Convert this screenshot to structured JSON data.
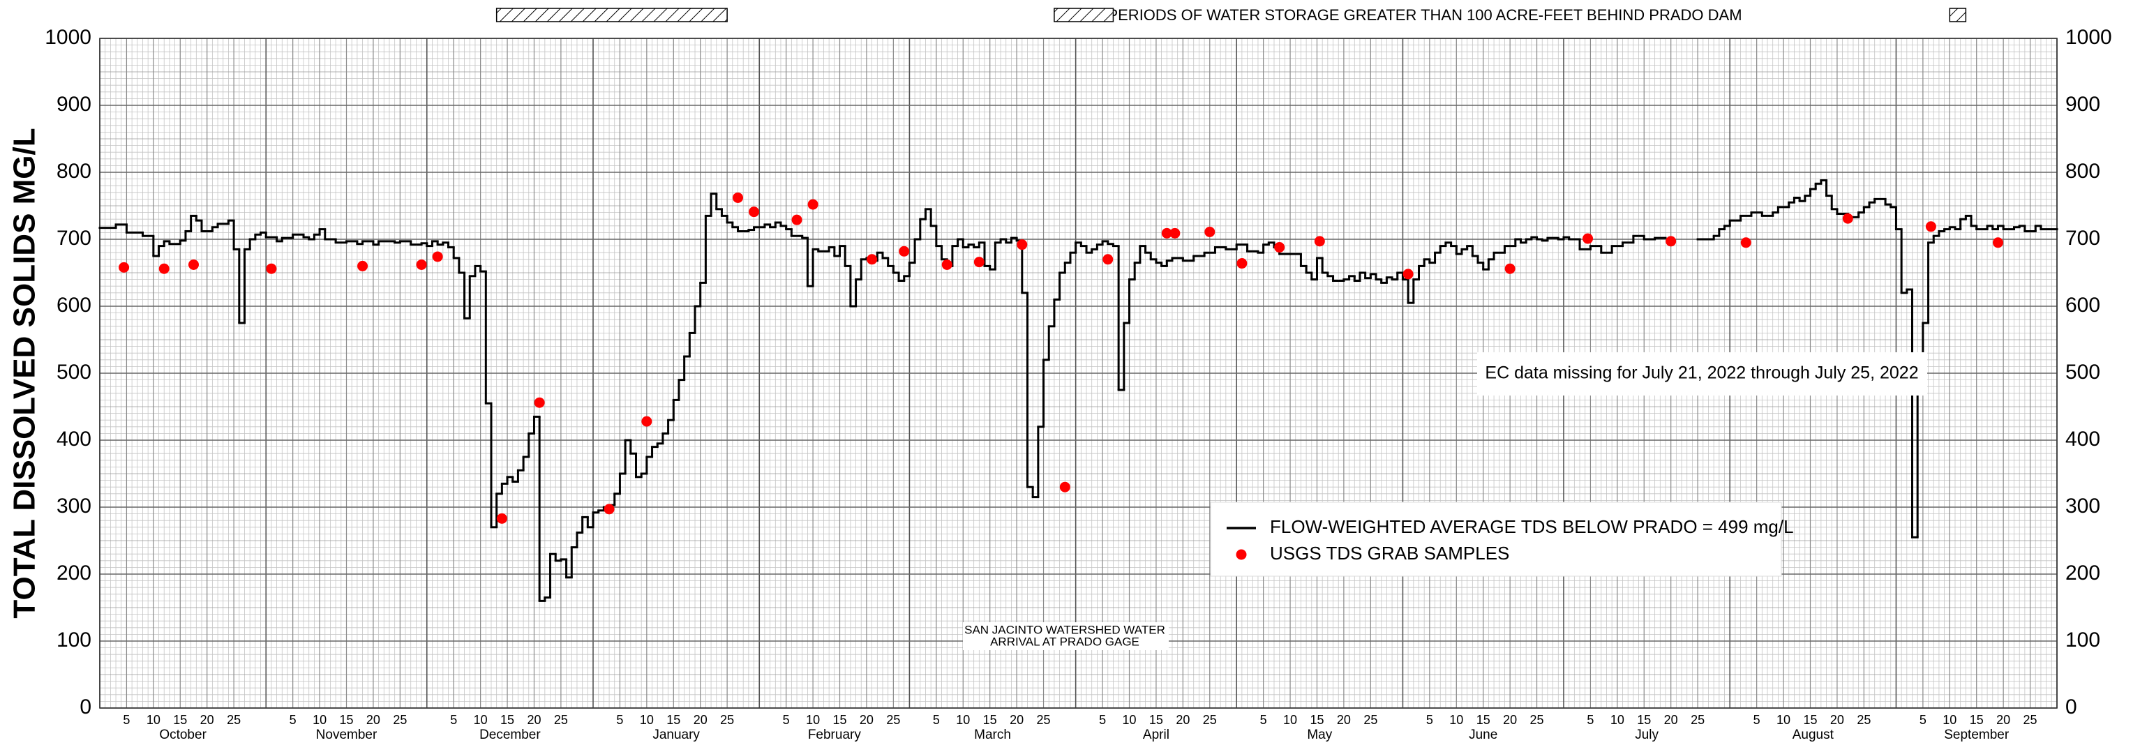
{
  "chart_data": {
    "type": "line",
    "y_label": "TOTAL DISSOLVED SOLIDS MG/L",
    "xlim": [
      0,
      365
    ],
    "ylim": [
      0,
      1000
    ],
    "yticks": [
      0,
      100,
      200,
      300,
      400,
      500,
      600,
      700,
      800,
      900,
      1000
    ],
    "grid": true,
    "xticks": [
      {
        "value": 5,
        "label": "5"
      },
      {
        "value": 10,
        "label": "10"
      },
      {
        "value": 15,
        "label": "15"
      },
      {
        "value": 20,
        "label": "20"
      },
      {
        "value": 25,
        "label": "25"
      },
      {
        "value": 36,
        "label": "5"
      },
      {
        "value": 41,
        "label": "10"
      },
      {
        "value": 46,
        "label": "15"
      },
      {
        "value": 51,
        "label": "20"
      },
      {
        "value": 56,
        "label": "25"
      },
      {
        "value": 66,
        "label": "5"
      },
      {
        "value": 71,
        "label": "10"
      },
      {
        "value": 76,
        "label": "15"
      },
      {
        "value": 81,
        "label": "20"
      },
      {
        "value": 86,
        "label": "25"
      },
      {
        "value": 97,
        "label": "5"
      },
      {
        "value": 102,
        "label": "10"
      },
      {
        "value": 107,
        "label": "15"
      },
      {
        "value": 112,
        "label": "20"
      },
      {
        "value": 117,
        "label": "25"
      },
      {
        "value": 128,
        "label": "5"
      },
      {
        "value": 133,
        "label": "10"
      },
      {
        "value": 138,
        "label": "15"
      },
      {
        "value": 143,
        "label": "20"
      },
      {
        "value": 148,
        "label": "25"
      },
      {
        "value": 156,
        "label": "5"
      },
      {
        "value": 161,
        "label": "10"
      },
      {
        "value": 166,
        "label": "15"
      },
      {
        "value": 171,
        "label": "20"
      },
      {
        "value": 176,
        "label": "25"
      },
      {
        "value": 187,
        "label": "5"
      },
      {
        "value": 192,
        "label": "10"
      },
      {
        "value": 197,
        "label": "15"
      },
      {
        "value": 202,
        "label": "20"
      },
      {
        "value": 207,
        "label": "25"
      },
      {
        "value": 217,
        "label": "5"
      },
      {
        "value": 222,
        "label": "10"
      },
      {
        "value": 227,
        "label": "15"
      },
      {
        "value": 232,
        "label": "20"
      },
      {
        "value": 237,
        "label": "25"
      },
      {
        "value": 248,
        "label": "5"
      },
      {
        "value": 253,
        "label": "10"
      },
      {
        "value": 258,
        "label": "15"
      },
      {
        "value": 263,
        "label": "20"
      },
      {
        "value": 268,
        "label": "25"
      },
      {
        "value": 278,
        "label": "5"
      },
      {
        "value": 283,
        "label": "10"
      },
      {
        "value": 288,
        "label": "15"
      },
      {
        "value": 293,
        "label": "20"
      },
      {
        "value": 298,
        "label": "25"
      },
      {
        "value": 309,
        "label": "5"
      },
      {
        "value": 314,
        "label": "10"
      },
      {
        "value": 319,
        "label": "15"
      },
      {
        "value": 324,
        "label": "20"
      },
      {
        "value": 329,
        "label": "25"
      },
      {
        "value": 340,
        "label": "5"
      },
      {
        "value": 345,
        "label": "10"
      },
      {
        "value": 350,
        "label": "15"
      },
      {
        "value": 355,
        "label": "20"
      },
      {
        "value": 360,
        "label": "25"
      }
    ],
    "month_bounds": [
      0,
      31,
      61,
      92,
      123,
      151,
      182,
      212,
      243,
      273,
      304,
      335,
      365
    ],
    "months": [
      "October",
      "November",
      "December",
      "January",
      "February",
      "March",
      "April",
      "May",
      "June",
      "July",
      "August",
      "September"
    ],
    "series": [
      {
        "name": "FLOW-WEIGHTED AVERAGE TDS BELOW PRADO = 499 mg/L",
        "mode": "step",
        "color": "#000000",
        "x": [
          0,
          3,
          5,
          8,
          10,
          11,
          12,
          13,
          15,
          16,
          17,
          18,
          19,
          21,
          22,
          24,
          25,
          26,
          27,
          28,
          29,
          30,
          31,
          33,
          34,
          36,
          38,
          39,
          40,
          41,
          42,
          44,
          46,
          48,
          49,
          51,
          52,
          55,
          56,
          58,
          60,
          61,
          62,
          63,
          64,
          65,
          66,
          67,
          68,
          69,
          70,
          71,
          72,
          73,
          74,
          75,
          76,
          77,
          78,
          79,
          80,
          81,
          82,
          83,
          84,
          85,
          86,
          87,
          88,
          89,
          90,
          91,
          92,
          93,
          94,
          95,
          96,
          97,
          98,
          99,
          100,
          101,
          102,
          103,
          104,
          105,
          106,
          107,
          108,
          109,
          110,
          111,
          112,
          113,
          114,
          115,
          116,
          117,
          118,
          119,
          121,
          122,
          124,
          125,
          126,
          127,
          128,
          129,
          131,
          132,
          133,
          134,
          136,
          137,
          138,
          139,
          140,
          141,
          142,
          143,
          144,
          145,
          146,
          147,
          148,
          149,
          150,
          151,
          152,
          153,
          154,
          155,
          156,
          157,
          158,
          159,
          160,
          161,
          162,
          163,
          164,
          165,
          166,
          167,
          168,
          169,
          170,
          171,
          172,
          173,
          174,
          175,
          176,
          177,
          178,
          179,
          180,
          181,
          182,
          183,
          184,
          185,
          186,
          187,
          188,
          189,
          190,
          191,
          192,
          193,
          194,
          195,
          196,
          197,
          198,
          199,
          200,
          202,
          204,
          206,
          208,
          210,
          212,
          214,
          216,
          217,
          218,
          219,
          220,
          222,
          224,
          225,
          226,
          227,
          228,
          229,
          230,
          232,
          233,
          234,
          235,
          236,
          237,
          238,
          239,
          240,
          241,
          242,
          243,
          244,
          245,
          246,
          247,
          248,
          249,
          250,
          251,
          252,
          253,
          254,
          255,
          256,
          257,
          258,
          259,
          260,
          262,
          264,
          265,
          266,
          267,
          268,
          269,
          270,
          272,
          273,
          274,
          276,
          278,
          280,
          282,
          284,
          286,
          288,
          290,
          292,
          298,
          301,
          302,
          303,
          304,
          306,
          308,
          310,
          312,
          313,
          315,
          316,
          317,
          318,
          319,
          320,
          321,
          322,
          323,
          324,
          326,
          328,
          329,
          330,
          331,
          333,
          334,
          335,
          336,
          337,
          338,
          339,
          340,
          341,
          342,
          343,
          344,
          345,
          346,
          347,
          348,
          349,
          350,
          352,
          353,
          354,
          355,
          357,
          358,
          359,
          361,
          362
        ],
        "values": [
          717,
          722,
          710,
          705,
          675,
          690,
          697,
          693,
          698,
          712,
          735,
          728,
          712,
          718,
          723,
          728,
          685,
          575,
          685,
          700,
          707,
          710,
          703,
          697,
          702,
          707,
          703,
          700,
          707,
          715,
          700,
          695,
          697,
          693,
          697,
          692,
          697,
          695,
          697,
          692,
          694,
          690,
          697,
          692,
          695,
          688,
          672,
          650,
          582,
          645,
          660,
          652,
          455,
          270,
          320,
          335,
          345,
          338,
          355,
          375,
          410,
          435,
          160,
          165,
          230,
          220,
          222,
          195,
          240,
          262,
          285,
          270,
          292,
          295,
          300,
          303,
          320,
          350,
          400,
          380,
          345,
          350,
          375,
          390,
          395,
          410,
          430,
          460,
          490,
          525,
          560,
          600,
          635,
          735,
          768,
          745,
          735,
          725,
          718,
          712,
          714,
          718,
          722,
          718,
          725,
          720,
          715,
          705,
          702,
          630,
          685,
          682,
          688,
          675,
          690,
          660,
          600,
          640,
          670,
          672,
          668,
          680,
          672,
          660,
          650,
          638,
          645,
          665,
          700,
          730,
          745,
          720,
          690,
          670,
          660,
          690,
          700,
          688,
          692,
          688,
          695,
          660,
          655,
          695,
          700,
          695,
          702,
          698,
          620,
          330,
          315,
          420,
          520,
          570,
          610,
          650,
          665,
          680,
          695,
          690,
          680,
          685,
          692,
          697,
          693,
          690,
          475,
          575,
          640,
          665,
          690,
          680,
          670,
          665,
          660,
          668,
          672,
          668,
          675,
          680,
          688,
          685,
          692,
          682,
          680,
          692,
          695,
          688,
          678,
          678,
          660,
          650,
          640,
          672,
          650,
          645,
          638,
          640,
          645,
          638,
          650,
          642,
          648,
          640,
          635,
          643,
          640,
          650,
          640,
          605,
          640,
          660,
          670,
          665,
          680,
          690,
          695,
          690,
          678,
          685,
          690,
          675,
          665,
          655,
          670,
          680,
          690,
          700,
          695,
          700,
          703,
          700,
          698,
          702,
          700,
          703,
          700,
          685,
          690,
          680,
          690,
          695,
          705,
          700,
          702,
          null,
          700,
          705,
          715,
          720,
          728,
          735,
          740,
          735,
          740,
          748,
          755,
          762,
          757,
          765,
          775,
          783,
          788,
          765,
          745,
          738,
          733,
          740,
          748,
          755,
          760,
          752,
          748,
          715,
          620,
          625,
          255,
          495,
          575,
          695,
          705,
          712,
          715,
          718,
          715,
          730,
          735,
          720,
          715,
          720,
          715,
          720,
          715,
          718,
          720,
          712,
          720,
          715
        ]
      },
      {
        "name": "USGS TDS GRAB SAMPLES",
        "mode": "scatter",
        "color": "#ff0000",
        "x": [
          4.5,
          12,
          17.5,
          32,
          49,
          60,
          63,
          75,
          82,
          95,
          102,
          119,
          122,
          130,
          133,
          144,
          150,
          158,
          164,
          172,
          180,
          188,
          199,
          200.5,
          207,
          213,
          220,
          227.5,
          244,
          263,
          277.5,
          293,
          307,
          326,
          341.5,
          354
        ],
        "values": [
          658,
          656,
          662,
          656,
          660,
          662,
          674,
          283,
          456,
          297,
          428,
          762,
          741,
          729,
          752,
          670,
          682,
          662,
          666,
          692,
          330,
          670,
          709,
          709,
          711,
          664,
          688,
          697,
          648,
          656,
          701,
          697,
          695,
          731,
          719,
          695
        ]
      }
    ],
    "storage_label": "PERIODS OF WATER STORAGE GREATER THAN 100 ACRE-FEET BEHIND PRADO DAM",
    "storage_periods": [
      [
        74,
        117
      ],
      [
        178,
        189
      ],
      [
        345,
        348
      ]
    ],
    "annotations": {
      "missing": "EC data missing for July 21, 2022 through July 25, 2022",
      "arrival": [
        "SAN JACINTO WATERSHED WATER",
        "ARRIVAL AT PRADO GAGE"
      ]
    }
  }
}
